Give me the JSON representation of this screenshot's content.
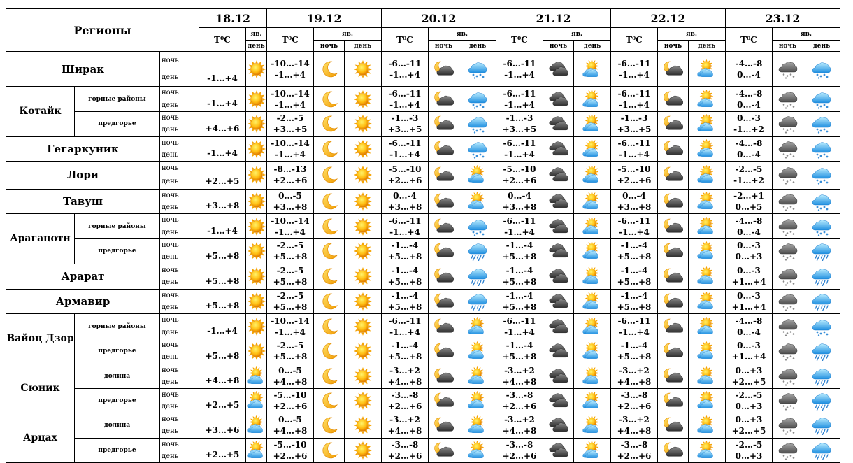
{
  "header": {
    "regions_label": "Регионы",
    "dates": [
      "18.12",
      "19.12",
      "20.12",
      "21.12",
      "22.12",
      "23.12"
    ],
    "temp_label": "T⁰C",
    "yav_label": "яв.",
    "day_short": "день",
    "night_label": "ночь",
    "day_label": "день"
  },
  "rows": [
    {
      "region": "Ширак",
      "sub": "",
      "d18": {
        "temp": "-1…+4",
        "icon": "sun-icon"
      },
      "days": [
        {
          "night": "-10…-14",
          "day": "-1…+4",
          "icon_night": "moon-icon",
          "icon_day": "sun-icon"
        },
        {
          "night": "-6…-11",
          "day": "-1…+4",
          "icon_night": "moon-cloud-icon",
          "icon_day": "cloud-snow-icon"
        },
        {
          "night": "-6…-11",
          "day": "-1…+4",
          "icon_night": "dark-clouds-icon",
          "icon_day": "sun-cloud-icon"
        },
        {
          "night": "-6…-11",
          "day": "-1…+4",
          "icon_night": "moon-cloud-icon",
          "icon_day": "sun-cloud-icon"
        },
        {
          "night": "-4…-8",
          "day": "0…-4",
          "icon_night": "gray-cloud-snow-icon",
          "icon_day": "cloud-snow-icon"
        }
      ]
    },
    {
      "region": "Котайк",
      "sub": "горные районы",
      "d18": {
        "temp": "-1…+4",
        "icon": "sun-icon"
      },
      "days": [
        {
          "night": "-10…-14",
          "day": "-1…+4",
          "icon_night": "moon-icon",
          "icon_day": "sun-icon"
        },
        {
          "night": "-6…-11",
          "day": "-1…+4",
          "icon_night": "moon-cloud-icon",
          "icon_day": "cloud-snow-icon"
        },
        {
          "night": "-6…-11",
          "day": "-1…+4",
          "icon_night": "dark-clouds-icon",
          "icon_day": "sun-cloud-icon"
        },
        {
          "night": "-6…-11",
          "day": "-1…+4",
          "icon_night": "moon-cloud-icon",
          "icon_day": "sun-cloud-icon"
        },
        {
          "night": "-4…-8",
          "day": "0…-4",
          "icon_night": "gray-cloud-snow-icon",
          "icon_day": "cloud-snow-icon"
        }
      ]
    },
    {
      "region": "",
      "sub": "предгорье",
      "d18": {
        "temp": "+4…+6",
        "icon": "sun-icon"
      },
      "days": [
        {
          "night": "-2…-5",
          "day": "+3…+5",
          "icon_night": "moon-icon",
          "icon_day": "sun-icon"
        },
        {
          "night": "-1…-3",
          "day": "+3…+5",
          "icon_night": "moon-cloud-icon",
          "icon_day": "cloud-snow-icon"
        },
        {
          "night": "-1…-3",
          "day": "+3…+5",
          "icon_night": "dark-clouds-icon",
          "icon_day": "sun-cloud-icon"
        },
        {
          "night": "-1…-3",
          "day": "+3…+5",
          "icon_night": "moon-cloud-icon",
          "icon_day": "sun-cloud-icon"
        },
        {
          "night": "0…-3",
          "day": "-1…+2",
          "icon_night": "gray-cloud-snow-icon",
          "icon_day": "cloud-snow-icon"
        }
      ]
    },
    {
      "region": "Гегаркуник",
      "sub": "",
      "d18": {
        "temp": "-1…+4",
        "icon": "sun-icon"
      },
      "days": [
        {
          "night": "-10…-14",
          "day": "-1…+4",
          "icon_night": "moon-icon",
          "icon_day": "sun-icon"
        },
        {
          "night": "-6…-11",
          "day": "-1…+4",
          "icon_night": "moon-cloud-icon",
          "icon_day": "cloud-snow-icon"
        },
        {
          "night": "-6…-11",
          "day": "-1…+4",
          "icon_night": "dark-clouds-icon",
          "icon_day": "sun-cloud-icon"
        },
        {
          "night": "-6…-11",
          "day": "-1…+4",
          "icon_night": "moon-cloud-icon",
          "icon_day": "sun-cloud-icon"
        },
        {
          "night": "-4…-8",
          "day": "0…-4",
          "icon_night": "gray-cloud-snow-icon",
          "icon_day": "cloud-snow-icon"
        }
      ]
    },
    {
      "region": "Лори",
      "sub": "",
      "d18": {
        "temp": "+2…+5",
        "icon": "sun-icon"
      },
      "days": [
        {
          "night": "-8…-13",
          "day": "+2…+6",
          "icon_night": "moon-icon",
          "icon_day": "sun-icon"
        },
        {
          "night": "-5…-10",
          "day": "+2…+6",
          "icon_night": "moon-cloud-icon",
          "icon_day": "sun-cloud-icon"
        },
        {
          "night": "-5…-10",
          "day": "+2…+6",
          "icon_night": "dark-clouds-icon",
          "icon_day": "sun-cloud-icon"
        },
        {
          "night": "-5…-10",
          "day": "+2…+6",
          "icon_night": "moon-cloud-icon",
          "icon_day": "sun-cloud-icon"
        },
        {
          "night": "-2…-5",
          "day": "-1…+2",
          "icon_night": "gray-cloud-snow-icon",
          "icon_day": "cloud-snow-icon"
        }
      ]
    },
    {
      "region": "Тавуш",
      "sub": "",
      "d18": {
        "temp": "+3…+8",
        "icon": "sun-icon"
      },
      "days": [
        {
          "night": "0…-5",
          "day": "+3…+8",
          "icon_night": "moon-icon",
          "icon_day": "sun-icon"
        },
        {
          "night": "0…-4",
          "day": "+3…+8",
          "icon_night": "moon-cloud-icon",
          "icon_day": "sun-cloud-icon"
        },
        {
          "night": "0…-4",
          "day": "+3…+8",
          "icon_night": "dark-clouds-icon",
          "icon_day": "sun-cloud-icon"
        },
        {
          "night": "0…-4",
          "day": "+3…+8",
          "icon_night": "moon-cloud-icon",
          "icon_day": "sun-cloud-icon"
        },
        {
          "night": "-2…+1",
          "day": "0…+5",
          "icon_night": "gray-cloud-snow-icon",
          "icon_day": "cloud-snow-icon"
        }
      ]
    },
    {
      "region": "Арагацотн",
      "sub": "горные районы",
      "d18": {
        "temp": "-1…+4",
        "icon": "sun-icon"
      },
      "days": [
        {
          "night": "-10…-14",
          "day": "-1…+4",
          "icon_night": "moon-icon",
          "icon_day": "sun-icon"
        },
        {
          "night": "-6…-11",
          "day": "-1…+4",
          "icon_night": "moon-cloud-icon",
          "icon_day": "cloud-snow-icon"
        },
        {
          "night": "-6…-11",
          "day": "-1…+4",
          "icon_night": "dark-clouds-icon",
          "icon_day": "sun-cloud-icon"
        },
        {
          "night": "-6…-11",
          "day": "-1…+4",
          "icon_night": "moon-cloud-icon",
          "icon_day": "sun-cloud-icon"
        },
        {
          "night": "-4…-8",
          "day": "0…-4",
          "icon_night": "gray-cloud-snow-icon",
          "icon_day": "cloud-snow-icon"
        }
      ]
    },
    {
      "region": "",
      "sub": "предгорье",
      "d18": {
        "temp": "+5…+8",
        "icon": "sun-icon"
      },
      "days": [
        {
          "night": "-2…-5",
          "day": "+5…+8",
          "icon_night": "moon-icon",
          "icon_day": "sun-icon"
        },
        {
          "night": "-1…-4",
          "day": "+5…+8",
          "icon_night": "moon-cloud-icon",
          "icon_day": "cloud-rain-icon"
        },
        {
          "night": "-1…-4",
          "day": "+5…+8",
          "icon_night": "dark-clouds-icon",
          "icon_day": "sun-cloud-icon"
        },
        {
          "night": "-1…-4",
          "day": "+5…+8",
          "icon_night": "moon-cloud-icon",
          "icon_day": "sun-cloud-icon"
        },
        {
          "night": "0…-3",
          "day": "0…+3",
          "icon_night": "gray-cloud-snow-icon",
          "icon_day": "cloud-rain-icon"
        }
      ]
    },
    {
      "region": "Арарат",
      "sub": "",
      "d18": {
        "temp": "+5…+8",
        "icon": "sun-icon"
      },
      "days": [
        {
          "night": "-2…-5",
          "day": "+5…+8",
          "icon_night": "moon-icon",
          "icon_day": "sun-icon"
        },
        {
          "night": "-1…-4",
          "day": "+5…+8",
          "icon_night": "moon-cloud-icon",
          "icon_day": "cloud-rain-icon"
        },
        {
          "night": "-1…-4",
          "day": "+5…+8",
          "icon_night": "dark-clouds-icon",
          "icon_day": "sun-cloud-icon"
        },
        {
          "night": "-1…-4",
          "day": "+5…+8",
          "icon_night": "moon-cloud-icon",
          "icon_day": "sun-cloud-icon"
        },
        {
          "night": "0…-3",
          "day": "+1…+4",
          "icon_night": "gray-cloud-snow-icon",
          "icon_day": "cloud-rain-icon"
        }
      ]
    },
    {
      "region": "Армавир",
      "sub": "",
      "d18": {
        "temp": "+5…+8",
        "icon": "sun-icon"
      },
      "days": [
        {
          "night": "-2…-5",
          "day": "+5…+8",
          "icon_night": "moon-icon",
          "icon_day": "sun-icon"
        },
        {
          "night": "-1…-4",
          "day": "+5…+8",
          "icon_night": "moon-cloud-icon",
          "icon_day": "cloud-rain-icon"
        },
        {
          "night": "-1…-4",
          "day": "+5…+8",
          "icon_night": "dark-clouds-icon",
          "icon_day": "sun-cloud-icon"
        },
        {
          "night": "-1…-4",
          "day": "+5…+8",
          "icon_night": "moon-cloud-icon",
          "icon_day": "sun-cloud-icon"
        },
        {
          "night": "0…-3",
          "day": "+1…+4",
          "icon_night": "gray-cloud-snow-icon",
          "icon_day": "cloud-rain-icon"
        }
      ]
    },
    {
      "region": "Вайоц Дзор",
      "sub": "горные районы",
      "d18": {
        "temp": "-1…+4",
        "icon": "sun-icon"
      },
      "days": [
        {
          "night": "-10…-14",
          "day": "-1…+4",
          "icon_night": "moon-icon",
          "icon_day": "sun-icon"
        },
        {
          "night": "-6…-11",
          "day": "-1…+4",
          "icon_night": "moon-cloud-icon",
          "icon_day": "sun-cloud-icon"
        },
        {
          "night": "-6…-11",
          "day": "-1…+4",
          "icon_night": "dark-clouds-icon",
          "icon_day": "sun-cloud-icon"
        },
        {
          "night": "-6…-11",
          "day": "-1…+4",
          "icon_night": "moon-cloud-icon",
          "icon_day": "sun-cloud-icon"
        },
        {
          "night": "-4…-8",
          "day": "0…-4",
          "icon_night": "gray-cloud-snow-icon",
          "icon_day": "cloud-snow-icon"
        }
      ]
    },
    {
      "region": "",
      "sub": "предгорье",
      "d18": {
        "temp": "+5…+8",
        "icon": "sun-icon"
      },
      "days": [
        {
          "night": "-2…-5",
          "day": "+5…+8",
          "icon_night": "moon-icon",
          "icon_day": "sun-icon"
        },
        {
          "night": "-1…-4",
          "day": "+5…+8",
          "icon_night": "moon-cloud-icon",
          "icon_day": "sun-cloud-icon"
        },
        {
          "night": "-1…-4",
          "day": "+5…+8",
          "icon_night": "dark-clouds-icon",
          "icon_day": "sun-cloud-icon"
        },
        {
          "night": "-1…-4",
          "day": "+5…+8",
          "icon_night": "moon-cloud-icon",
          "icon_day": "sun-cloud-icon"
        },
        {
          "night": "0…-3",
          "day": "+1…+4",
          "icon_night": "gray-cloud-snow-icon",
          "icon_day": "cloud-rain-icon"
        }
      ]
    },
    {
      "region": "Сюник",
      "sub": "долина",
      "d18": {
        "temp": "+4…+8",
        "icon": "sun-cloud-icon"
      },
      "days": [
        {
          "night": "0…-5",
          "day": "+4…+8",
          "icon_night": "moon-icon",
          "icon_day": "sun-icon"
        },
        {
          "night": "-3…+2",
          "day": "+4…+8",
          "icon_night": "moon-cloud-icon",
          "icon_day": "sun-cloud-icon"
        },
        {
          "night": "-3…+2",
          "day": "+4…+8",
          "icon_night": "dark-clouds-icon",
          "icon_day": "sun-cloud-icon"
        },
        {
          "night": "-3…+2",
          "day": "+4…+8",
          "icon_night": "moon-cloud-icon",
          "icon_day": "sun-cloud-icon"
        },
        {
          "night": "0…+3",
          "day": "+2…+5",
          "icon_night": "gray-cloud-snow-icon",
          "icon_day": "cloud-rain-icon"
        }
      ]
    },
    {
      "region": "",
      "sub": "предгорье",
      "d18": {
        "temp": "+2…+5",
        "icon": "sun-cloud-icon"
      },
      "days": [
        {
          "night": "-5…-10",
          "day": "+2…+6",
          "icon_night": "moon-icon",
          "icon_day": "sun-icon"
        },
        {
          "night": "-3…-8",
          "day": "+2…+6",
          "icon_night": "moon-cloud-icon",
          "icon_day": "sun-cloud-icon"
        },
        {
          "night": "-3…-8",
          "day": "+2…+6",
          "icon_night": "dark-clouds-icon",
          "icon_day": "sun-cloud-icon"
        },
        {
          "night": "-3…-8",
          "day": "+2…+6",
          "icon_night": "moon-cloud-icon",
          "icon_day": "sun-cloud-icon"
        },
        {
          "night": "-2…-5",
          "day": "0…+3",
          "icon_night": "gray-cloud-snow-icon",
          "icon_day": "cloud-rain-icon"
        }
      ]
    },
    {
      "region": "Арцах",
      "sub": "долина",
      "d18": {
        "temp": "+3…+6",
        "icon": "sun-cloud-icon"
      },
      "days": [
        {
          "night": "0…-5",
          "day": "+4…+8",
          "icon_night": "moon-icon",
          "icon_day": "sun-icon"
        },
        {
          "night": "-3…+2",
          "day": "+4…+8",
          "icon_night": "moon-cloud-icon",
          "icon_day": "sun-cloud-icon"
        },
        {
          "night": "-3…+2",
          "day": "+4…+8",
          "icon_night": "dark-clouds-icon",
          "icon_day": "sun-cloud-icon"
        },
        {
          "night": "-3…+2",
          "day": "+4…+8",
          "icon_night": "moon-cloud-icon",
          "icon_day": "sun-cloud-icon"
        },
        {
          "night": "0…+3",
          "day": "+2…+5",
          "icon_night": "gray-cloud-snow-icon",
          "icon_day": "cloud-rain-icon"
        }
      ]
    },
    {
      "region": "",
      "sub": "предгорье",
      "d18": {
        "temp": "+2…+5",
        "icon": "sun-cloud-icon"
      },
      "days": [
        {
          "night": "-5…-10",
          "day": "+2…+6",
          "icon_night": "moon-icon",
          "icon_day": "sun-icon"
        },
        {
          "night": "-3…-8",
          "day": "+2…+6",
          "icon_night": "moon-cloud-icon",
          "icon_day": "sun-cloud-icon"
        },
        {
          "night": "-3…-8",
          "day": "+2…+6",
          "icon_night": "dark-clouds-icon",
          "icon_day": "sun-cloud-icon"
        },
        {
          "night": "-3…-8",
          "day": "+2…+6",
          "icon_night": "moon-cloud-icon",
          "icon_day": "sun-cloud-icon"
        },
        {
          "night": "-2…-5",
          "day": "0…+3",
          "icon_night": "gray-cloud-snow-icon",
          "icon_day": "cloud-rain-icon"
        }
      ]
    }
  ]
}
